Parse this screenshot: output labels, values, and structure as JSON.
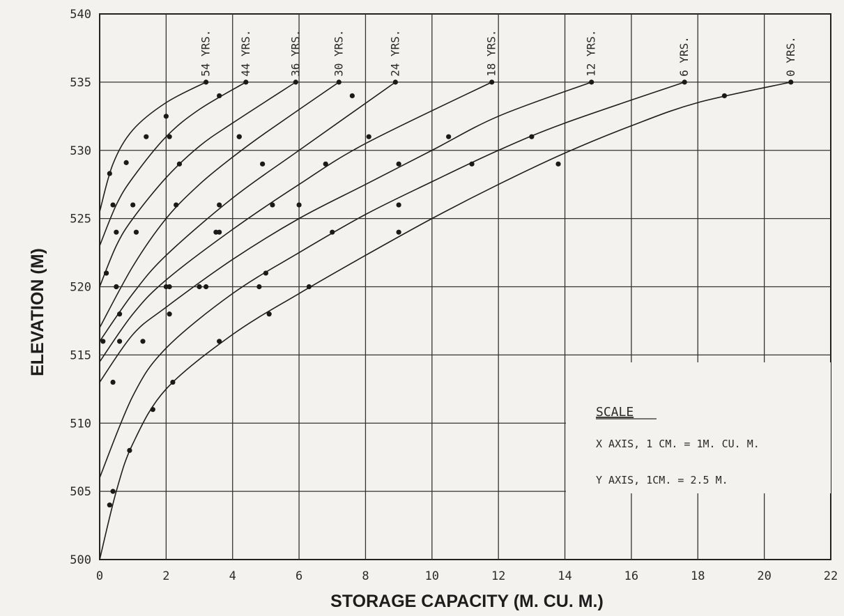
{
  "chart_data": {
    "type": "line",
    "title": "",
    "xlabel": "STORAGE CAPACITY (M. CU. M.)",
    "ylabel": "ELEVATION (M)",
    "xlim": [
      0,
      22
    ],
    "ylim": [
      500,
      540
    ],
    "x_ticks": [
      0,
      2,
      4,
      6,
      8,
      10,
      12,
      14,
      16,
      18,
      20,
      22
    ],
    "y_ticks": [
      500,
      505,
      510,
      515,
      520,
      525,
      530,
      535,
      540
    ],
    "grid": true,
    "legend": "none",
    "series": [
      {
        "name": "54 YRS.",
        "x": [
          0.0,
          0.4,
          1.0,
          2.0,
          3.2
        ],
        "y": [
          525.5,
          529.0,
          531.5,
          533.5,
          535.0
        ],
        "points": [
          [
            0.3,
            528.3
          ],
          [
            0.8,
            529.1
          ],
          [
            1.4,
            531.0
          ],
          [
            2.0,
            532.5
          ],
          [
            3.2,
            535.0
          ]
        ]
      },
      {
        "name": "44 YRS.",
        "x": [
          0.0,
          0.5,
          1.0,
          2.0,
          3.0,
          4.4
        ],
        "y": [
          523.0,
          526.0,
          528.0,
          531.0,
          533.0,
          535.0
        ],
        "points": [
          [
            0.4,
            526.0
          ],
          [
            1.0,
            526.0
          ],
          [
            2.1,
            531.0
          ],
          [
            3.6,
            534.0
          ],
          [
            4.4,
            535.0
          ]
        ]
      },
      {
        "name": "36 YRS.",
        "x": [
          0.0,
          0.5,
          1.0,
          2.0,
          3.0,
          4.0,
          5.9
        ],
        "y": [
          520.0,
          523.0,
          525.0,
          528.0,
          530.3,
          532.0,
          535.0
        ],
        "points": [
          [
            0.2,
            521.0
          ],
          [
            0.5,
            524.0
          ],
          [
            1.1,
            524.0
          ],
          [
            2.4,
            529.0
          ],
          [
            4.2,
            531.0
          ],
          [
            5.9,
            535.0
          ]
        ]
      },
      {
        "name": "30 YRS.",
        "x": [
          0.0,
          1.0,
          2.0,
          3.0,
          4.0,
          5.0,
          7.2
        ],
        "y": [
          517.0,
          521.5,
          525.0,
          527.5,
          529.5,
          531.3,
          535.0
        ],
        "points": [
          [
            0.2,
            521.0
          ],
          [
            0.5,
            520.0
          ],
          [
            2.3,
            526.0
          ],
          [
            4.2,
            531.0
          ],
          [
            4.9,
            529.0
          ],
          [
            7.2,
            535.0
          ]
        ]
      },
      {
        "name": "24 YRS.",
        "x": [
          0.0,
          1.0,
          2.0,
          4.0,
          6.0,
          8.9
        ],
        "y": [
          516.0,
          519.5,
          522.3,
          526.5,
          530.0,
          535.0
        ],
        "points": [
          [
            0.1,
            516.0
          ],
          [
            0.6,
            518.0
          ],
          [
            2.0,
            520.0
          ],
          [
            3.6,
            526.0
          ],
          [
            5.2,
            526.0
          ],
          [
            7.6,
            534.0
          ],
          [
            8.9,
            535.0
          ]
        ]
      },
      {
        "name": "18 YRS.",
        "x": [
          0.0,
          1.0,
          2.0,
          4.0,
          6.0,
          8.0,
          11.8
        ],
        "y": [
          514.5,
          518.0,
          520.5,
          524.2,
          527.5,
          530.5,
          535.0
        ],
        "points": [
          [
            0.5,
            520.0
          ],
          [
            2.1,
            520.0
          ],
          [
            3.5,
            524.0
          ],
          [
            6.0,
            526.0
          ],
          [
            8.1,
            531.0
          ],
          [
            11.8,
            535.0
          ]
        ]
      },
      {
        "name": "12 YRS.",
        "x": [
          0.0,
          1.0,
          2.0,
          4.0,
          6.0,
          8.0,
          10.0,
          12.0,
          14.8
        ],
        "y": [
          513.0,
          516.5,
          518.5,
          522.0,
          525.0,
          527.5,
          530.0,
          532.5,
          535.0
        ],
        "points": [
          [
            0.4,
            513.0
          ],
          [
            0.6,
            516.0
          ],
          [
            2.1,
            518.0
          ],
          [
            3.0,
            520.0
          ],
          [
            3.6,
            524.0
          ],
          [
            5.0,
            521.0
          ],
          [
            6.8,
            529.0
          ],
          [
            9.0,
            529.0
          ],
          [
            10.5,
            531.0
          ],
          [
            14.8,
            535.0
          ]
        ]
      },
      {
        "name": "6 YRS.",
        "x": [
          0.0,
          1.0,
          2.0,
          4.0,
          6.0,
          8.0,
          10.0,
          12.0,
          14.0,
          17.6
        ],
        "y": [
          506.0,
          512.0,
          515.5,
          519.5,
          522.5,
          525.3,
          527.7,
          530.0,
          532.0,
          535.0
        ],
        "points": [
          [
            1.3,
            516.0
          ],
          [
            3.2,
            520.0
          ],
          [
            4.8,
            520.0
          ],
          [
            7.0,
            524.0
          ],
          [
            9.0,
            526.0
          ],
          [
            11.2,
            529.0
          ],
          [
            13.0,
            531.0
          ],
          [
            17.6,
            535.0
          ]
        ]
      },
      {
        "name": "0 YRS.",
        "x": [
          0.0,
          0.5,
          1.0,
          2.0,
          4.0,
          6.0,
          8.0,
          10.0,
          12.0,
          14.0,
          16.0,
          18.0,
          20.8
        ],
        "y": [
          500.0,
          505.0,
          508.5,
          512.5,
          516.5,
          519.5,
          522.3,
          525.0,
          527.5,
          529.8,
          531.8,
          533.5,
          535.0
        ],
        "points": [
          [
            0.3,
            504.0
          ],
          [
            0.4,
            505.0
          ],
          [
            0.9,
            508.0
          ],
          [
            1.6,
            511.0
          ],
          [
            2.2,
            513.0
          ],
          [
            3.6,
            516.0
          ],
          [
            5.1,
            518.0
          ],
          [
            6.3,
            520.0
          ],
          [
            9.0,
            524.0
          ],
          [
            13.8,
            529.0
          ],
          [
            18.8,
            534.0
          ],
          [
            20.8,
            535.0
          ]
        ]
      }
    ]
  },
  "scale_box": {
    "title": "SCALE",
    "line1": "X  AXIS,  1 CM. = 1M.  CU.  M.",
    "line2": "Y  AXIS,  1CM. = 2.5 M."
  }
}
